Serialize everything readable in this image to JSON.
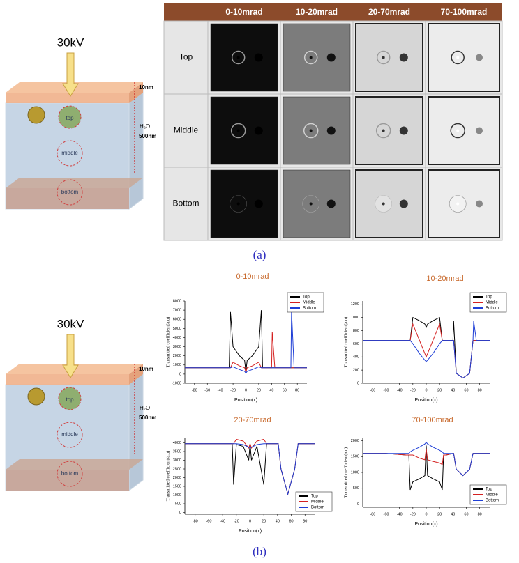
{
  "figure": {
    "caption_a": "(a)",
    "caption_b": "(b)"
  },
  "diagrams": [
    {
      "voltage": "30kV",
      "film": "10nm",
      "medium": "H₂O",
      "thickness": "500nm",
      "pos_top": "top",
      "pos_middle": "middle",
      "pos_bottom": "bottom"
    },
    {
      "voltage": "30kV",
      "film": "10nm",
      "medium": "H₂O",
      "thickness": "500nm",
      "pos_top": "top",
      "pos_middle": "middle",
      "pos_bottom": "bottom"
    }
  ],
  "table": {
    "columns": [
      "0-10mrad",
      "10-20mrad",
      "20-70mrad",
      "70-100mrad"
    ],
    "rows": [
      "Top",
      "Middle",
      "Bottom"
    ]
  },
  "chart_data": [
    {
      "type": "line",
      "title": "0-10mrad",
      "xlabel": "Position(x)",
      "ylabel": "Transmitted  coefficient(a.u)",
      "legend": "upper right",
      "x": [
        -95,
        -60,
        -30,
        -26,
        -24,
        -20,
        -10,
        -2,
        0,
        2,
        10,
        20,
        24,
        26,
        30,
        40,
        41,
        45,
        55,
        65,
        70,
        71,
        75,
        95
      ],
      "xlim": [
        -95,
        95
      ],
      "xticks": [
        -80,
        -60,
        -40,
        -20,
        0,
        20,
        40,
        60,
        80
      ],
      "ylim": [
        -1000,
        8000
      ],
      "yticks": [
        -1000,
        0,
        1000,
        2000,
        3000,
        4000,
        5000,
        6000,
        7000,
        8000
      ],
      "series": [
        {
          "name": "Top",
          "color": "#000000",
          "values": [
            700,
            700,
            700,
            700,
            6800,
            3000,
            2000,
            1500,
            300,
            1500,
            2000,
            3000,
            7000,
            700,
            700,
            700,
            700,
            700,
            700,
            700,
            700,
            700,
            700,
            700
          ]
        },
        {
          "name": "Middle",
          "color": "#d42020",
          "values": [
            700,
            700,
            700,
            700,
            700,
            1300,
            900,
            700,
            200,
            700,
            900,
            1300,
            700,
            700,
            700,
            700,
            4600,
            700,
            700,
            700,
            700,
            700,
            700,
            700
          ]
        },
        {
          "name": "Bottom",
          "color": "#1f3fd6",
          "values": [
            700,
            700,
            700,
            700,
            700,
            800,
            500,
            300,
            100,
            300,
            500,
            800,
            700,
            700,
            700,
            700,
            700,
            700,
            700,
            700,
            700,
            7000,
            700,
            700
          ]
        }
      ]
    },
    {
      "type": "line",
      "title": "10-20mrad",
      "xlabel": "Position(x)",
      "ylabel": "Transmitted  coefficient(a.u)",
      "legend": "upper right",
      "x": [
        -95,
        -60,
        -30,
        -26,
        -24,
        -20,
        -10,
        -2,
        0,
        2,
        10,
        20,
        24,
        26,
        30,
        40,
        41,
        45,
        55,
        65,
        70,
        71,
        75,
        95
      ],
      "xlim": [
        -95,
        95
      ],
      "xticks": [
        -80,
        -60,
        -40,
        -20,
        0,
        20,
        40,
        60,
        80
      ],
      "ylim": [
        0,
        1250
      ],
      "yticks": [
        0,
        200,
        400,
        600,
        800,
        1000,
        1200
      ],
      "series": [
        {
          "name": "Top",
          "color": "#000000",
          "values": [
            650,
            650,
            650,
            650,
            650,
            1000,
            950,
            900,
            850,
            900,
            950,
            1000,
            650,
            650,
            650,
            650,
            950,
            150,
            80,
            150,
            650,
            650,
            650,
            650
          ]
        },
        {
          "name": "Middle",
          "color": "#d42020",
          "values": [
            650,
            650,
            650,
            650,
            650,
            900,
            650,
            450,
            400,
            450,
            650,
            900,
            650,
            650,
            650,
            650,
            650,
            150,
            80,
            150,
            650,
            650,
            650,
            650
          ]
        },
        {
          "name": "Bottom",
          "color": "#1f3fd6",
          "values": [
            650,
            650,
            650,
            650,
            650,
            600,
            450,
            350,
            330,
            350,
            450,
            600,
            650,
            650,
            650,
            650,
            650,
            150,
            80,
            150,
            650,
            950,
            650,
            650
          ]
        }
      ]
    },
    {
      "type": "line",
      "title": "20-70mrad",
      "xlabel": "Position(x)",
      "ylabel": "Transmitted  coefficient(a.u)",
      "legend": "lower right",
      "x": [
        -95,
        -60,
        -30,
        -26,
        -24,
        -20,
        -10,
        -2,
        0,
        2,
        10,
        20,
        24,
        26,
        30,
        40,
        41,
        45,
        55,
        65,
        70,
        71,
        75,
        95
      ],
      "xlim": [
        -95,
        95
      ],
      "xticks": [
        -80,
        -60,
        -40,
        -20,
        0,
        20,
        40,
        60,
        80
      ],
      "ylim": [
        -100,
        4300
      ],
      "yticks": [
        0,
        500,
        1000,
        1500,
        2000,
        2500,
        3000,
        3500,
        4000
      ],
      "series": [
        {
          "name": "Top",
          "color": "#000000",
          "values": [
            3950,
            3950,
            3950,
            3950,
            1600,
            3900,
            3800,
            3000,
            3950,
            3000,
            3800,
            1600,
            3950,
            3950,
            3950,
            3950,
            3950,
            2500,
            1050,
            2500,
            3950,
            3950,
            3950,
            3950
          ]
        },
        {
          "name": "Middle",
          "color": "#d42020",
          "values": [
            3950,
            3950,
            3950,
            3950,
            3950,
            4200,
            4100,
            3700,
            3950,
            3700,
            4100,
            4200,
            3950,
            3950,
            3950,
            3950,
            3950,
            2500,
            1050,
            2500,
            3950,
            3950,
            3950,
            3950
          ]
        },
        {
          "name": "Bottom",
          "color": "#1f3fd6",
          "values": [
            3950,
            3950,
            3950,
            3950,
            3950,
            3950,
            3900,
            3750,
            3700,
            3750,
            3900,
            3950,
            3950,
            3950,
            3950,
            3950,
            3950,
            2500,
            1050,
            2500,
            3950,
            3950,
            3950,
            3950
          ]
        }
      ]
    },
    {
      "type": "line",
      "title": "70-100mrad",
      "xlabel": "Position(x)",
      "ylabel": "Transmitted  coefficient(a.u)",
      "legend": "lower right",
      "x": [
        -95,
        -60,
        -30,
        -26,
        -24,
        -20,
        -10,
        -2,
        0,
        2,
        10,
        20,
        24,
        26,
        30,
        40,
        41,
        45,
        55,
        65,
        70,
        71,
        75,
        95
      ],
      "xlim": [
        -95,
        95
      ],
      "xticks": [
        -80,
        -60,
        -40,
        -20,
        0,
        20,
        40,
        60,
        80
      ],
      "ylim": [
        -100,
        2100
      ],
      "yticks": [
        0,
        500,
        1000,
        1500,
        2000
      ],
      "series": [
        {
          "name": "Top",
          "color": "#000000",
          "values": [
            1600,
            1600,
            1550,
            1550,
            450,
            700,
            800,
            900,
            1850,
            900,
            800,
            700,
            450,
            1550,
            1550,
            1600,
            1600,
            1100,
            900,
            1100,
            1600,
            1600,
            1600,
            1600
          ]
        },
        {
          "name": "Middle",
          "color": "#d42020",
          "values": [
            1600,
            1600,
            1550,
            1550,
            1550,
            1550,
            1450,
            1400,
            1750,
            1400,
            1350,
            1300,
            1250,
            1550,
            1550,
            1600,
            1600,
            1100,
            900,
            1100,
            1600,
            1600,
            1600,
            1600
          ]
        },
        {
          "name": "Bottom",
          "color": "#1f3fd6",
          "values": [
            1600,
            1600,
            1600,
            1600,
            1650,
            1700,
            1800,
            1900,
            1950,
            1900,
            1800,
            1700,
            1650,
            1600,
            1600,
            1600,
            1600,
            1100,
            900,
            1100,
            1600,
            1600,
            1600,
            1600
          ]
        }
      ]
    }
  ]
}
